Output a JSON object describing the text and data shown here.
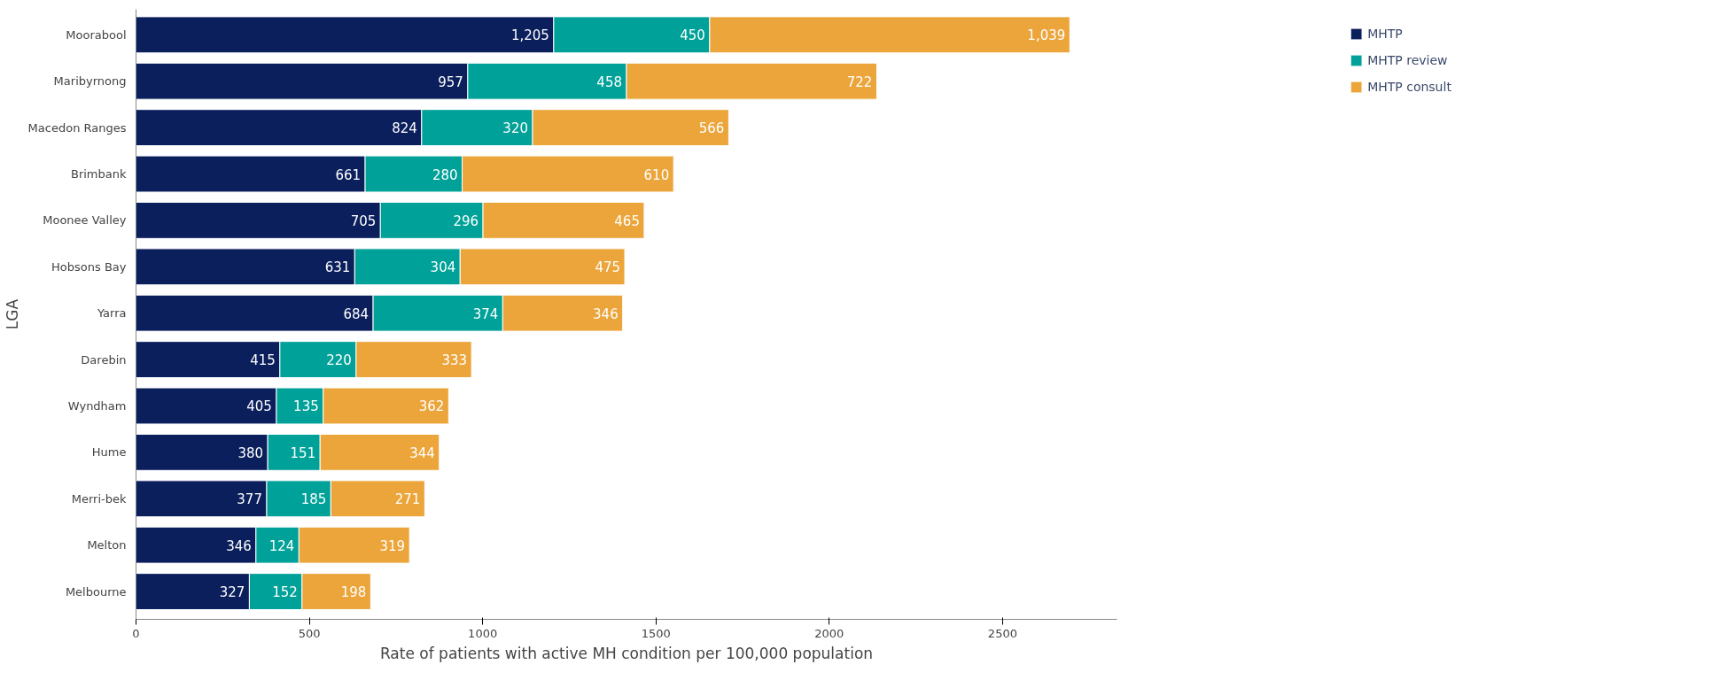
{
  "chart_data": {
    "type": "bar",
    "orientation": "horizontal",
    "stacked": true,
    "xlabel": "Rate of patients with active MH condition per 100,000 population",
    "ylabel": "LGA",
    "categories": [
      "Moorabool",
      "Maribyrnong",
      "Macedon Ranges",
      "Brimbank",
      "Moonee Valley",
      "Hobsons Bay",
      "Yarra",
      "Darebin",
      "Wyndham",
      "Hume",
      "Merri-bek",
      "Melton",
      "Melbourne"
    ],
    "series": [
      {
        "name": "MHTP",
        "color": "#0b1f5c",
        "values": [
          1205,
          957,
          824,
          661,
          705,
          631,
          684,
          415,
          405,
          380,
          377,
          346,
          327
        ],
        "value_labels": [
          "1,205",
          "957",
          "824",
          "661",
          "705",
          "631",
          "684",
          "415",
          "405",
          "380",
          "377",
          "346",
          "327"
        ]
      },
      {
        "name": "MHTP review",
        "color": "#00a198",
        "values": [
          450,
          458,
          320,
          280,
          296,
          304,
          374,
          220,
          135,
          151,
          185,
          124,
          152
        ],
        "value_labels": [
          "450",
          "458",
          "320",
          "280",
          "296",
          "304",
          "374",
          "220",
          "135",
          "151",
          "185",
          "124",
          "152"
        ]
      },
      {
        "name": "MHTP consult",
        "color": "#eba53b",
        "values": [
          1039,
          722,
          566,
          610,
          465,
          475,
          346,
          333,
          362,
          344,
          271,
          319,
          198
        ],
        "value_labels": [
          "1,039",
          "722",
          "566",
          "610",
          "465",
          "475",
          "346",
          "333",
          "362",
          "344",
          "271",
          "319",
          "198"
        ]
      }
    ],
    "xlim": [
      0,
      2830
    ],
    "xticks": [
      0,
      500,
      1000,
      1500,
      2000,
      2500
    ],
    "grid": false,
    "legend": "top right"
  }
}
